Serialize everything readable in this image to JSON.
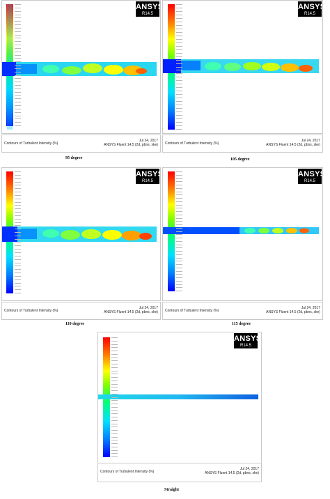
{
  "panels": [
    {
      "caption": "95 degree",
      "logo_brand": "ANSYS",
      "logo_version": "R14.5",
      "contour_title": "Contours of Turbulent Intensity (%)",
      "date": "Jul 24, 2017",
      "solver": "ANSYS Fluent 14.5 (2d, pbns, ske)"
    },
    {
      "caption": "105 degree",
      "logo_brand": "ANSYS",
      "logo_version": "R14.5",
      "contour_title": "Contours of Turbulent Intensity (%)",
      "date": "Jul 24, 2017",
      "solver": "ANSYS Fluent 14.5 (2d, pbns, ske)"
    },
    {
      "caption": "110 degree",
      "logo_brand": "ANSYS",
      "logo_version": "R14.5",
      "contour_title": "Contours of Turbulent Intensity (%)",
      "date": "Jul 24, 2017",
      "solver": "ANSYS Fluent 14.5 (2d, pbns, ske)"
    },
    {
      "caption": "115 degree",
      "logo_brand": "ANSYS",
      "logo_version": "R14.5",
      "contour_title": "Contours of Turbulent Intensity (%)",
      "date": "Jul 24, 2017",
      "solver": "ANSYS Fluent 14.5 (2d, pbns, ske)"
    },
    {
      "caption": "Straight",
      "logo_brand": "ANSYS",
      "logo_version": "R14.5",
      "contour_title": "Contours of Turbulent Intensity (%)",
      "date": "Jul 24, 2017",
      "solver": "ANSYS Fluent 14.5 (2d, pbns, ske)"
    }
  ],
  "colormap": [
    "#0000ff",
    "#0080ff",
    "#00e0ff",
    "#00ff80",
    "#80ff00",
    "#ffff00",
    "#ff8000",
    "#ff0000"
  ],
  "colorbar_tick_count": 37
}
